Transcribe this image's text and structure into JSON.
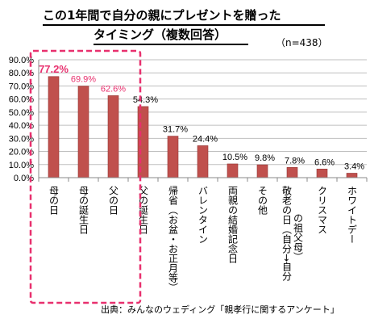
{
  "title": {
    "line1": "この1年間で自分の親にプレゼントを贈った",
    "line2": "タイミング（複数回答）"
  },
  "sample_size": "（n=438）",
  "source": "出典：みんなのウェディング「親孝行に関するアンケート」",
  "colors": {
    "bar": "#c0504d",
    "bar_border": "#943634",
    "highlight": "#e8306e",
    "grid": "#bfbfbf",
    "axis": "#888888"
  },
  "chart_data": {
    "type": "bar",
    "categories": [
      "母の日",
      "母の誕生日",
      "父の日",
      "父の誕生日",
      "帰省（お盆・お正月等）",
      "バレンタイン",
      "両親の結婚記念日",
      "その他",
      "敬老の日（自分→自分の祖父母）",
      "クリスマス",
      "ホワイトデー"
    ],
    "category_lines": [
      [
        "母の日"
      ],
      [
        "母の誕生日"
      ],
      [
        "父の日"
      ],
      [
        "父の誕生日"
      ],
      [
        "帰省（お盆・お正月等）"
      ],
      [
        "バレンタイン"
      ],
      [
        "両親の結婚記念日"
      ],
      [
        "その他"
      ],
      [
        "敬老の日（自分→自分",
        "の祖父母）"
      ],
      [
        "クリスマス"
      ],
      [
        "ホワイトデー"
      ]
    ],
    "values": [
      77.2,
      69.9,
      62.6,
      54.3,
      31.7,
      24.4,
      10.5,
      9.8,
      7.8,
      6.6,
      3.4
    ],
    "value_labels": [
      "77.2%",
      "69.9%",
      "62.6%",
      "54.3%",
      "31.7%",
      "24.4%",
      "10.5%",
      "9.8%",
      "7.8%",
      "6.6%",
      "3.4%"
    ],
    "highlighted": [
      0,
      1,
      2
    ],
    "ylim": [
      0,
      90
    ],
    "yticks": [
      0,
      10,
      20,
      30,
      40,
      50,
      60,
      70,
      80,
      90
    ],
    "ytick_labels": [
      "0.0%",
      "10.0%",
      "20.0%",
      "30.0%",
      "40.0%",
      "50.0%",
      "60.0%",
      "70.0%",
      "80.0%",
      "90.0%"
    ],
    "grid": true,
    "highlight_box": "dashed box around first three categories",
    "xlabel": "",
    "ylabel": ""
  }
}
